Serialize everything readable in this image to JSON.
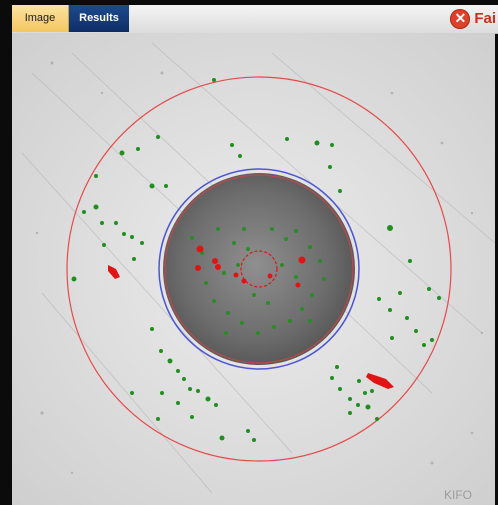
{
  "tabs": [
    {
      "label": "Image",
      "active": true
    },
    {
      "label": "Results",
      "active": false
    }
  ],
  "status": {
    "label": "Fai",
    "icon": "fail-x-icon",
    "color": "#d02c1e"
  },
  "overlay_colors": {
    "outer_ring": "#e8484a",
    "inner_blue_ring": "#4a56d4",
    "inner_red_ring": "#c04848",
    "defect_green": "#1f8f1f",
    "defect_red": "#e01414"
  },
  "watermark": "KIFO"
}
